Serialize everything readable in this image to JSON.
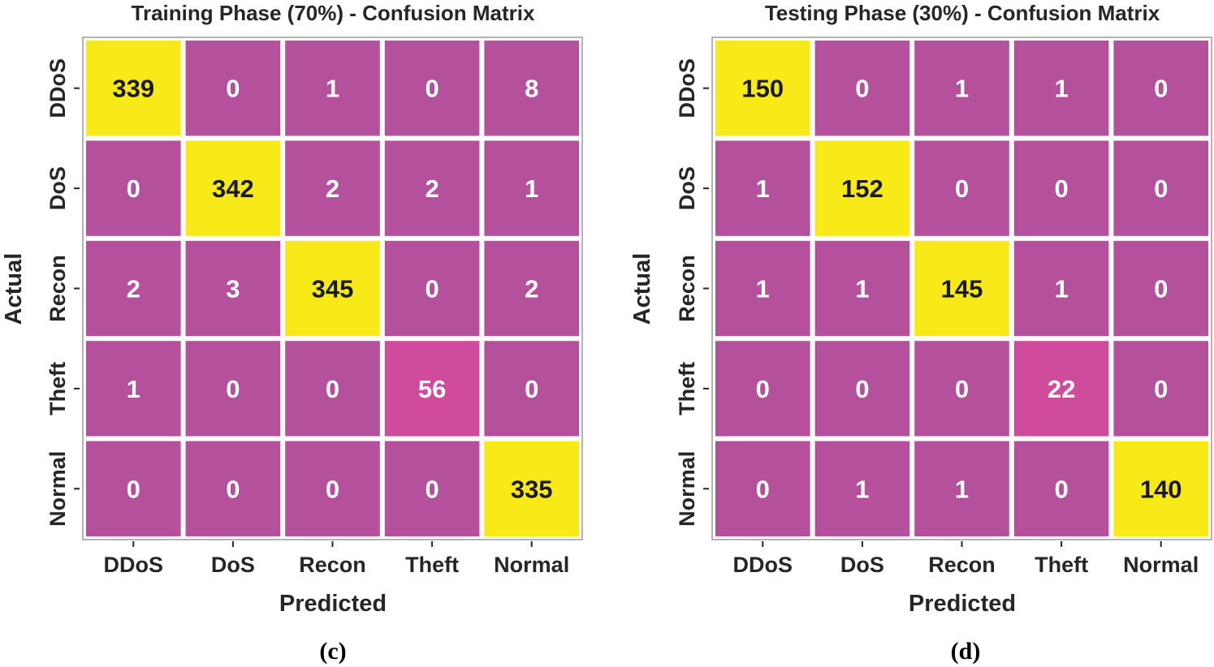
{
  "colors": {
    "diag_high": "#f7ea18",
    "offdiag": "#b5509c",
    "mid": "#cf4b9c",
    "border": "#ffffff",
    "frame": "#9a9a9a",
    "diag_text": "#1a1a1a",
    "cell_text": "#ffffff",
    "axis_text": "#262626"
  },
  "chart_data": [
    {
      "type": "heatmap",
      "title": "Training Phase (70%) - Confusion Matrix",
      "xlabel": "Predicted",
      "ylabel": "Actual",
      "caption": "(c)",
      "x_categories": [
        "DDoS",
        "DoS",
        "Recon",
        "Theft",
        "Normal"
      ],
      "y_categories": [
        "DDoS",
        "DoS",
        "Recon",
        "Theft",
        "Normal"
      ],
      "values": [
        [
          339,
          0,
          1,
          0,
          8
        ],
        [
          0,
          342,
          2,
          2,
          1
        ],
        [
          2,
          3,
          345,
          0,
          2
        ],
        [
          1,
          0,
          0,
          56,
          0
        ],
        [
          0,
          0,
          0,
          0,
          335
        ]
      ]
    },
    {
      "type": "heatmap",
      "title": "Testing Phase (30%) - Confusion Matrix",
      "xlabel": "Predicted",
      "ylabel": "Actual",
      "caption": "(d)",
      "x_categories": [
        "DDoS",
        "DoS",
        "Recon",
        "Theft",
        "Normal"
      ],
      "y_categories": [
        "DDoS",
        "DoS",
        "Recon",
        "Theft",
        "Normal"
      ],
      "values": [
        [
          150,
          0,
          1,
          1,
          0
        ],
        [
          1,
          152,
          0,
          0,
          0
        ],
        [
          1,
          1,
          145,
          1,
          0
        ],
        [
          0,
          0,
          0,
          22,
          0
        ],
        [
          0,
          1,
          1,
          0,
          140
        ]
      ]
    }
  ]
}
